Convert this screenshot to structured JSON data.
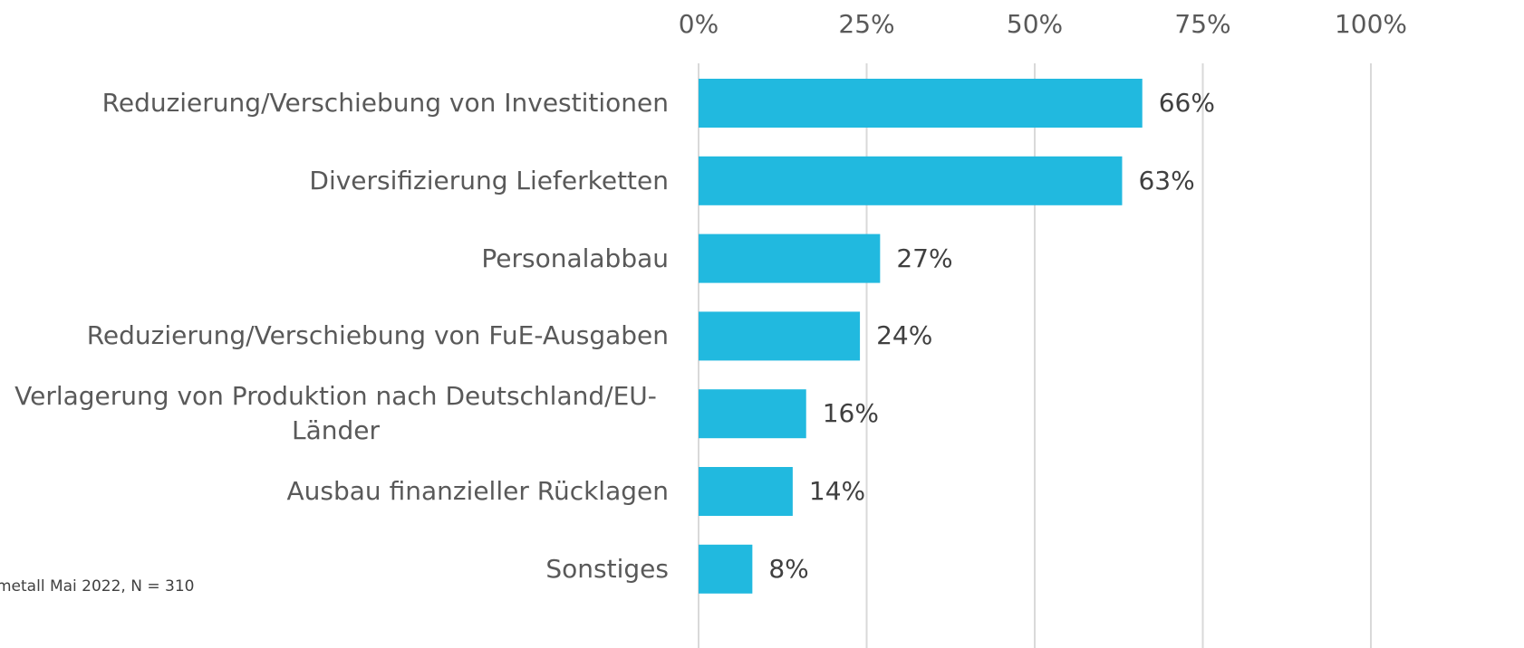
{
  "chart_data": {
    "type": "bar",
    "orientation": "horizontal",
    "categories": [
      "Reduzierung/Verschiebung von Investitionen",
      "Diversifizierung Lieferketten",
      "Personalabbau",
      "Reduzierung/Verschiebung von FuE-Ausgaben",
      "Verlagerung von Produktion nach Deutschland/EU-Länder",
      "Ausbau finanzieller Rücklagen",
      "Sonstiges"
    ],
    "values": [
      66,
      63,
      27,
      24,
      16,
      14,
      8
    ],
    "value_labels": [
      "66%",
      "63%",
      "27%",
      "24%",
      "16%",
      "14%",
      "8%"
    ],
    "color": "#21b9df",
    "xlim": [
      0,
      100
    ],
    "xticks": [
      {
        "value": 0,
        "label": "0%"
      },
      {
        "value": 25,
        "label": "25%"
      },
      {
        "value": 50,
        "label": "50%"
      },
      {
        "value": 75,
        "label": "75%"
      },
      {
        "value": 100,
        "label": "100%"
      }
    ],
    "grid": true,
    "source": "metall Mai 2022, N = 310"
  }
}
